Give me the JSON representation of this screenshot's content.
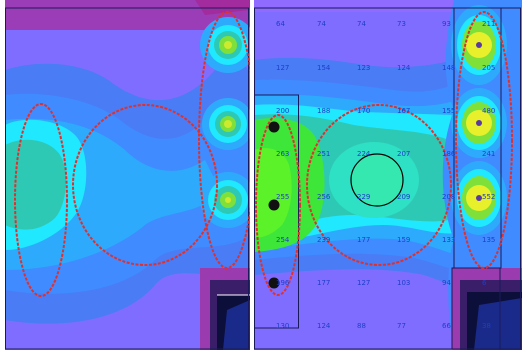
{
  "left_panel": {},
  "right_panel": {
    "labels": [
      {
        "text": "64"
      },
      {
        "text": "74"
      },
      {
        "text": "74"
      },
      {
        "text": "73"
      },
      {
        "text": "93"
      },
      {
        "text": "211"
      },
      {
        "text": "127"
      },
      {
        "text": "154"
      },
      {
        "text": "123"
      },
      {
        "text": "124"
      },
      {
        "text": "148"
      },
      {
        "text": "205"
      },
      {
        "text": "200"
      },
      {
        "text": "188"
      },
      {
        "text": "170"
      },
      {
        "text": "167"
      },
      {
        "text": "155"
      },
      {
        "text": "480"
      },
      {
        "text": "263"
      },
      {
        "text": "251"
      },
      {
        "text": "224"
      },
      {
        "text": "207"
      },
      {
        "text": "186"
      },
      {
        "text": "241"
      },
      {
        "text": "255"
      },
      {
        "text": "256"
      },
      {
        "text": "229"
      },
      {
        "text": "209"
      },
      {
        "text": "208"
      },
      {
        "text": "552"
      },
      {
        "text": "254"
      },
      {
        "text": "239"
      },
      {
        "text": "177"
      },
      {
        "text": "159"
      },
      {
        "text": "133"
      },
      {
        "text": "135"
      },
      {
        "text": "196"
      },
      {
        "text": "177"
      },
      {
        "text": "127"
      },
      {
        "text": "103"
      },
      {
        "text": "94"
      },
      {
        "text": "6"
      },
      {
        "text": "130"
      },
      {
        "text": "124"
      },
      {
        "text": "88"
      },
      {
        "text": "77"
      },
      {
        "text": "66"
      },
      {
        "text": "38"
      }
    ]
  }
}
